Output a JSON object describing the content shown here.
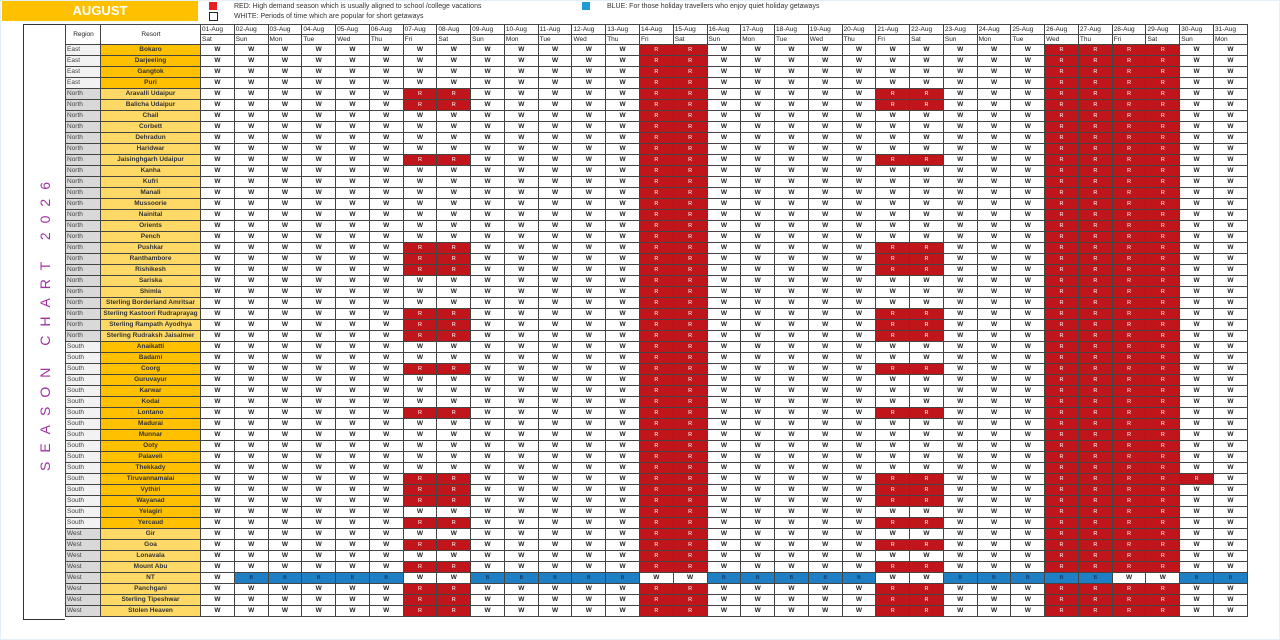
{
  "header": {
    "month": "AUGUST"
  },
  "legend": [
    {
      "color": "#e81e25",
      "text": "RED: High demand season which is usually aligned to school /college vacations"
    },
    {
      "color": "#ffffff",
      "text": "WHITE: Periods of time which are popular for short getaways"
    },
    {
      "color": "#1e9ad6",
      "text": "BLUE: For those holiday travellers who enjoy quiet holiday getaways"
    }
  ],
  "side_label": "SEASON CHART 2026",
  "colors": {
    "red": "#c0161b",
    "blue": "#1f7fc4",
    "orange": "#ffc000",
    "light_orange": "#ffd966",
    "region_light": "#f2f2f2",
    "region_dark": "#d9d9d9"
  },
  "columns": {
    "region": "Region",
    "resort": "Resort"
  },
  "dates": [
    "01-Aug",
    "02-Aug",
    "03-Aug",
    "04-Aug",
    "05-Aug",
    "06-Aug",
    "07-Aug",
    "08-Aug",
    "09-Aug",
    "10-Aug",
    "11-Aug",
    "12-Aug",
    "13-Aug",
    "14-Aug",
    "15-Aug",
    "16-Aug",
    "17-Aug",
    "18-Aug",
    "19-Aug",
    "20-Aug",
    "21-Aug",
    "22-Aug",
    "23-Aug",
    "24-Aug",
    "25-Aug",
    "26-Aug",
    "27-Aug",
    "28-Aug",
    "29-Aug",
    "30-Aug",
    "31-Aug"
  ],
  "weekdays": [
    "Sat",
    "Sun",
    "Mon",
    "Tue",
    "Wed",
    "Thu",
    "Fri",
    "Sat",
    "Sun",
    "Mon",
    "Tue",
    "Wed",
    "Thu",
    "Fri",
    "Sat",
    "Sun",
    "Mon",
    "Tue",
    "Wed",
    "Thu",
    "Fri",
    "Sat",
    "Sun",
    "Mon",
    "Tue",
    "Wed",
    "Thu",
    "Fri",
    "Sat",
    "Sun",
    "Mon"
  ],
  "rows": [
    {
      "region": "East",
      "resort": "Bokaro",
      "days": "WWWWWWWWWWWWWRRWWWWWWWWWWRRRRWW"
    },
    {
      "region": "East",
      "resort": "Darjeeling",
      "days": "WWWWWWWWWWWWWRRWWWWWWWWWWRRRRWW"
    },
    {
      "region": "East",
      "resort": "Gangtok",
      "days": "WWWWWWWWWWWWWRRWWWWWWWWWWRRRRWW"
    },
    {
      "region": "East",
      "resort": "Puri",
      "days": "WWWWWWWWWWWWWRRWWWWWWWWWWRRRRWW"
    },
    {
      "region": "North",
      "resort": "Aravalli Udaipur",
      "days": "WWWWWWRRWWWWWRRWWWWWRRWWWRRRRWW"
    },
    {
      "region": "North",
      "resort": "Balicha Udaipur",
      "days": "WWWWWWRRWWWWWRRWWWWWRRWWWRRRRWW"
    },
    {
      "region": "North",
      "resort": "Chail",
      "days": "WWWWWWWWWWWWWRRWWWWWWWWWWRRRRWW"
    },
    {
      "region": "North",
      "resort": "Corbett",
      "days": "WWWWWWWWWWWWWRRWWWWWWWWWWRRRRWW"
    },
    {
      "region": "North",
      "resort": "Dehradun",
      "days": "WWWWWWWWWWWWWRRWWWWWWWWWWRRRRWW"
    },
    {
      "region": "North",
      "resort": "Haridwar",
      "days": "WWWWWWWWWWWWWRRWWWWWWWWWWRRRRWW"
    },
    {
      "region": "North",
      "resort": "Jaisinghgarh Udaipur",
      "days": "WWWWWWRRWWWWWRRWWWWWRRWWWRRRRWW"
    },
    {
      "region": "North",
      "resort": "Kanha",
      "days": "WWWWWWWWWWWWWRRWWWWWWWWWWRRRRWW"
    },
    {
      "region": "North",
      "resort": "Kufri",
      "days": "WWWWWWWWWWWWWRRWWWWWWWWWWRRRRWW"
    },
    {
      "region": "North",
      "resort": "Manali",
      "days": "WWWWWWWWWWWWWRRWWWWWWWWWWRRRRWW"
    },
    {
      "region": "North",
      "resort": "Mussoorie",
      "days": "WWWWWWWWWWWWWRRWWWWWWWWWWRRRRWW"
    },
    {
      "region": "North",
      "resort": "Nainital",
      "days": "WWWWWWWWWWWWWRRWWWWWWWWWWRRRRWW"
    },
    {
      "region": "North",
      "resort": "Orients",
      "days": "WWWWWWWWWWWWWRRWWWWWWWWWWRRRRWW"
    },
    {
      "region": "North",
      "resort": "Pench",
      "days": "WWWWWWWWWWWWWRRWWWWWWWWWWRRRRWW"
    },
    {
      "region": "North",
      "resort": "Pushkar",
      "days": "WWWWWWRRWWWWWRRWWWWWRRWWWRRRRWW"
    },
    {
      "region": "North",
      "resort": "Ranthambore",
      "days": "WWWWWWRRWWWWWRRWWWWWRRWWWRRRRWW"
    },
    {
      "region": "North",
      "resort": "Rishikesh",
      "days": "WWWWWWRRWWWWWRRWWWWWRRWWWRRRRWW"
    },
    {
      "region": "North",
      "resort": "Sariska",
      "days": "WWWWWWWWWWWWWRRWWWWWWWWWWRRRRWW"
    },
    {
      "region": "North",
      "resort": "Shimla",
      "days": "WWWWWWWWWWWWWRRWWWWWWWWWWRRRRWW"
    },
    {
      "region": "North",
      "resort": "Sterling Borderland Amritsar",
      "days": "WWWWWWWWWWWWWRRWWWWWWWWWWRRRRWW"
    },
    {
      "region": "North",
      "resort": "Sterling Kastoori Rudraprayag",
      "days": "WWWWWWRRWWWWWRRWWWWWRRWWWRRRRWW"
    },
    {
      "region": "North",
      "resort": "Sterling Rampath Ayodhya",
      "days": "WWWWWWRRWWWWWRRWWWWWRRWWWRRRRWW"
    },
    {
      "region": "North",
      "resort": "Sterling Rudraksh Jaisalmer",
      "days": "WWWWWWRRWWWWWRRWWWWWRRWWWRRRRWW"
    },
    {
      "region": "South",
      "resort": "Anaikatti",
      "days": "WWWWWWWWWWWWWRRWWWWWWWWWWRRRRWW"
    },
    {
      "region": "South",
      "resort": "Badami",
      "days": "WWWWWWWWWWWWWRRWWWWWWWWWWRRRRWW"
    },
    {
      "region": "South",
      "resort": "Coorg",
      "days": "WWWWWWRRWWWWWRRWWWWWRRWWWRRRRWW"
    },
    {
      "region": "South",
      "resort": "Guruvayur",
      "days": "WWWWWWWWWWWWWRRWWWWWWWWWWRRRRWW"
    },
    {
      "region": "South",
      "resort": "Karwar",
      "days": "WWWWWWWWWWWWWRRWWWWWWWWWWRRRRWW"
    },
    {
      "region": "South",
      "resort": "Kodai",
      "days": "WWWWWWWWWWWWWRRWWWWWWWWWWRRRRWW"
    },
    {
      "region": "South",
      "resort": "Lontano",
      "days": "WWWWWWRRWWWWWRRWWWWWRRWWWRRRRWW"
    },
    {
      "region": "South",
      "resort": "Madurai",
      "days": "WWWWWWWWWWWWWRRWWWWWWWWWWRRRRWW"
    },
    {
      "region": "South",
      "resort": "Munnar",
      "days": "WWWWWWWWWWWWWRRWWWWWWWWWWRRRRWW"
    },
    {
      "region": "South",
      "resort": "Ooty",
      "days": "WWWWWWWWWWWWWRRWWWWWWWWWWRRRRWW"
    },
    {
      "region": "South",
      "resort": "Palaveli",
      "days": "WWWWWWWWWWWWWRRWWWWWWWWWWRRRRWW"
    },
    {
      "region": "South",
      "resort": "Thekkady",
      "days": "WWWWWWWWWWWWWRRWWWWWWWWWWRRRRWW"
    },
    {
      "region": "South",
      "resort": "Tiruvannamalai",
      "days": "WWWWWWRRWWWWWRRWWWWWRRWWWRRRRRW"
    },
    {
      "region": "South",
      "resort": "Vythiri",
      "days": "WWWWWWRRWWWWWRRWWWWWRRWWWRRRRWW"
    },
    {
      "region": "South",
      "resort": "Wayanad",
      "days": "WWWWWWRRWWWWWRRWWWWWRRWWWRRRRWW"
    },
    {
      "region": "South",
      "resort": "Yelagiri",
      "days": "WWWWWWWWWWWWWRRWWWWWWWWWWRRRRWW"
    },
    {
      "region": "South",
      "resort": "Yercaud",
      "days": "WWWWWWRRWWWWWRRWWWWWRRWWWRRRRWW"
    },
    {
      "region": "West",
      "resort": "Gir",
      "days": "WWWWWWWWWWWWWRRWWWWWWWWWWRRRRWW"
    },
    {
      "region": "West",
      "resort": "Goa",
      "days": "WWWWWWRRWWWWWRRWWWWWRRWWWRRRRWW"
    },
    {
      "region": "West",
      "resort": "Lonavala",
      "days": "WWWWWWWWWWWWWRRWWWWWWWWWWRRRRWW"
    },
    {
      "region": "West",
      "resort": "Mount Abu",
      "days": "WWWWWWRRWWWWWRRWWWWWRRWWWRRRRWW"
    },
    {
      "region": "West",
      "resort": "NT",
      "days": "WBBBBBWWBBBBBWWBBBBBWWBBBBBWWBB"
    },
    {
      "region": "West",
      "resort": "Panchgani",
      "days": "WWWWWWRRWWWWWRRWWWWWRRWWWRRRRWW"
    },
    {
      "region": "West",
      "resort": "Sterling Tipeshwar",
      "days": "WWWWWWRRWWWWWRRWWWWWRRWWWRRRRWW"
    },
    {
      "region": "West",
      "resort": "Stolen Heaven",
      "days": "WWWWWWRRWWWWWRRWWWWWRRWWWRRRRWW"
    }
  ]
}
